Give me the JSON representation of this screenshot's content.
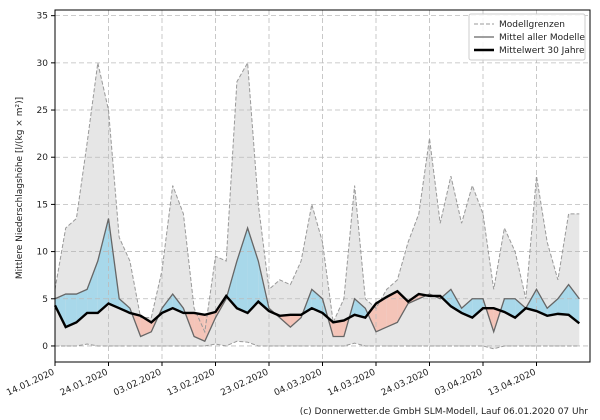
{
  "chart_data": {
    "type": "line",
    "ylabel": "Mittlere Niederschlagshöhe [l/(kg × m²)]",
    "footer": "(c) Donnerwetter.de GmbH SLM-Modell, Lauf 06.01.2020 07 Uhr",
    "x": [
      "14.01.2020",
      "16.01.2020",
      "18.01.2020",
      "20.01.2020",
      "22.01.2020",
      "24.01.2020",
      "26.01.2020",
      "28.01.2020",
      "30.01.2020",
      "01.02.2020",
      "03.02.2020",
      "05.02.2020",
      "07.02.2020",
      "09.02.2020",
      "11.02.2020",
      "13.02.2020",
      "15.02.2020",
      "17.02.2020",
      "19.02.2020",
      "21.02.2020",
      "23.02.2020",
      "25.02.2020",
      "27.02.2020",
      "29.02.2020",
      "02.03.2020",
      "04.03.2020",
      "06.03.2020",
      "08.03.2020",
      "10.03.2020",
      "12.03.2020",
      "14.03.2020",
      "16.03.2020",
      "18.03.2020",
      "20.03.2020",
      "22.03.2020",
      "24.03.2020",
      "26.03.2020",
      "28.03.2020",
      "30.03.2020",
      "01.04.2020",
      "03.04.2020",
      "05.04.2020",
      "07.04.2020",
      "09.04.2020",
      "11.04.2020",
      "13.04.2020",
      "15.04.2020",
      "17.04.2020",
      "19.04.2020",
      "21.04.2020"
    ],
    "series": [
      {
        "name": "Modellgrenzen",
        "color": "#999999",
        "values": [
          6,
          12.5,
          13.5,
          21.5,
          30,
          25,
          11.5,
          9,
          3,
          3,
          8,
          17,
          14,
          4,
          1.5,
          9.5,
          9,
          28,
          30,
          15,
          6,
          7,
          6.5,
          9,
          15,
          11,
          2.5,
          5,
          17,
          5,
          4,
          6,
          7,
          11,
          14,
          22,
          13,
          18,
          13,
          17,
          14,
          6,
          12.5,
          10,
          5,
          18,
          11,
          7,
          14,
          14
        ],
        "lower": [
          0,
          0,
          0,
          0.2,
          0,
          0,
          0,
          0,
          0,
          0,
          0,
          0,
          0,
          0,
          0,
          0.2,
          0,
          0.5,
          0.4,
          0,
          0,
          0,
          0,
          0,
          0,
          0,
          0,
          0,
          0.3,
          0,
          0,
          0,
          0,
          0,
          0,
          0,
          0,
          0,
          0,
          0,
          0,
          -0.3,
          0,
          0,
          0,
          0,
          0,
          0,
          0,
          0
        ]
      },
      {
        "name": "Mittel aller Modelle",
        "color": "#666666",
        "values": [
          5,
          5.5,
          5.5,
          6,
          9,
          13.5,
          5,
          4,
          1,
          1.5,
          4,
          5.5,
          4,
          1,
          0.5,
          3,
          5,
          9,
          12.5,
          9,
          4,
          3,
          2,
          3,
          6,
          5,
          1,
          1,
          5,
          4,
          1.5,
          2,
          2.5,
          4.5,
          5,
          5.5,
          5,
          6,
          4,
          5,
          5,
          1.5,
          5,
          5,
          4,
          6,
          4,
          5,
          6.5,
          5
        ]
      },
      {
        "name": "Mittelwert 30 Jahre",
        "color": "#000000",
        "values": [
          4.3,
          2,
          2.5,
          3.5,
          3.5,
          4.5,
          4,
          3.5,
          3.2,
          2.5,
          3.5,
          4,
          3.5,
          3.5,
          3.3,
          3.6,
          5.3,
          4,
          3.5,
          4.7,
          3.7,
          3.2,
          3.3,
          3.3,
          4,
          3.5,
          2.5,
          2.7,
          3.3,
          3,
          4.5,
          5.2,
          5.8,
          4.7,
          5.5,
          5.3,
          5.3,
          4.2,
          3.5,
          3,
          4,
          4,
          3.6,
          3,
          4,
          3.7,
          3.2,
          3.4,
          3.3,
          2.4
        ]
      }
    ],
    "above_color": "#a8d8ea",
    "below_color": "#f4c4b8",
    "band_color": "#e6e6e6",
    "xlim": [
      "14.01.2020",
      "23.04.2020"
    ],
    "xticks": [
      "14.01.2020",
      "24.01.2020",
      "03.02.2020",
      "13.02.2020",
      "23.02.2020",
      "04.03.2020",
      "14.03.2020",
      "24.03.2020",
      "03.04.2020",
      "13.04.2020"
    ],
    "ylim": [
      -1.7,
      35.6
    ],
    "yticks": [
      0,
      5,
      10,
      15,
      20,
      25,
      30,
      35
    ],
    "grid": true,
    "legend": "upper right"
  }
}
